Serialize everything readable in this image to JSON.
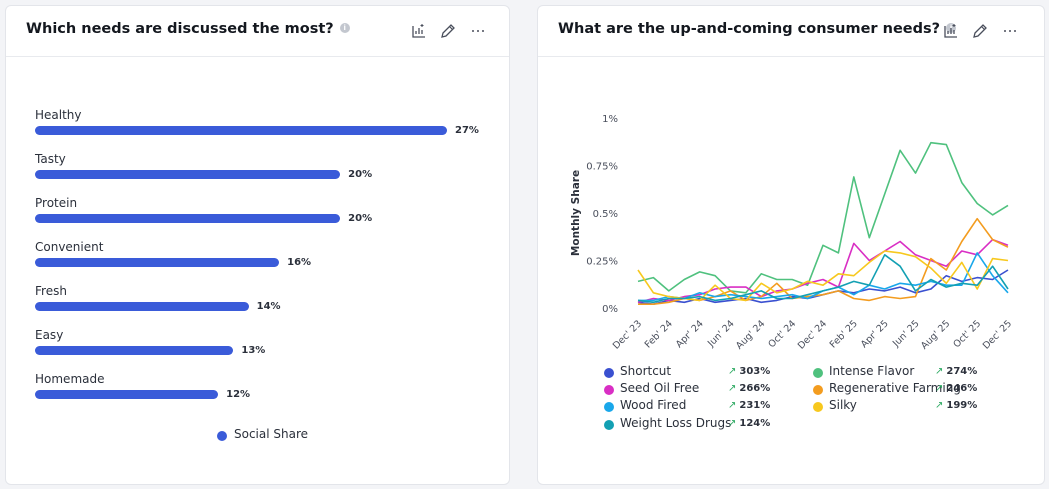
{
  "left_card": {
    "title": "Which needs are discussed the most?",
    "legend_label": "Social Share",
    "legend_color": "#3a5bd9"
  },
  "right_card": {
    "title": "What are the up-and-coming consumer needs?"
  },
  "icons": [
    "info-icon",
    "chart-settings-icon",
    "edit-icon",
    "more-icon",
    "trend-up-icon"
  ],
  "chart_data": [
    {
      "type": "bar",
      "orientation": "horizontal",
      "categories": [
        "Healthy",
        "Tasty",
        "Protein",
        "Convenient",
        "Fresh",
        "Easy",
        "Homemade"
      ],
      "values": [
        27,
        20,
        20,
        16,
        14,
        13,
        12
      ],
      "value_labels": [
        "27%",
        "20%",
        "20%",
        "16%",
        "14%",
        "13%",
        "12%"
      ],
      "series": [
        {
          "name": "Social Share",
          "color": "#3a5bd9"
        }
      ],
      "legend_position": "bottom"
    },
    {
      "type": "line",
      "ylabel": "Monthly Share",
      "ylim": [
        0,
        1
      ],
      "y_ticks": [
        "0%",
        "0.25%",
        "0.5%",
        "0.75%",
        "1%"
      ],
      "y_tick_values": [
        0,
        0.25,
        0.5,
        0.75,
        1
      ],
      "x": [
        "Dec 23",
        "Jan 24",
        "Feb 24",
        "Mar 24",
        "Apr 24",
        "May 24",
        "Jun 24",
        "Jul 24",
        "Aug 24",
        "Sep 24",
        "Oct 24",
        "Nov 24",
        "Dec 24",
        "Jan 25",
        "Feb 25",
        "Mar 25",
        "Apr 25",
        "May 25",
        "Jun 25",
        "Jul 25",
        "Aug 25",
        "Sep 25",
        "Oct 25",
        "Nov 25",
        "Dec 25"
      ],
      "x_tick_labels": [
        "Dec' 23",
        "Feb' 24",
        "Apr' 24",
        "Jun' 24",
        "Aug' 24",
        "Oct' 24",
        "Dec' 24",
        "Feb' 25",
        "Apr' 25",
        "Jun' 25",
        "Aug' 25",
        "Oct' 25",
        "Dec' 25"
      ],
      "legend_position": "bottom",
      "grid": false,
      "series": [
        {
          "name": "Shortcut",
          "color": "#3a50d0",
          "change": "303%",
          "values": [
            0.03,
            0.02,
            0.04,
            0.03,
            0.05,
            0.03,
            0.04,
            0.05,
            0.03,
            0.04,
            0.06,
            0.05,
            0.07,
            0.09,
            0.08,
            0.1,
            0.09,
            0.11,
            0.08,
            0.1,
            0.17,
            0.14,
            0.16,
            0.15,
            0.2
          ]
        },
        {
          "name": "Intense Flavor",
          "color": "#4fc17e",
          "change": "274%",
          "values": [
            0.14,
            0.16,
            0.09,
            0.15,
            0.19,
            0.17,
            0.09,
            0.08,
            0.18,
            0.15,
            0.15,
            0.12,
            0.33,
            0.29,
            0.69,
            0.37,
            0.6,
            0.83,
            0.71,
            0.87,
            0.86,
            0.66,
            0.55,
            0.49,
            0.54
          ]
        },
        {
          "name": "Seed Oil Free",
          "color": "#d92ec4",
          "change": "266%",
          "values": [
            0.03,
            0.05,
            0.04,
            0.06,
            0.07,
            0.1,
            0.11,
            0.11,
            0.06,
            0.09,
            0.1,
            0.13,
            0.15,
            0.11,
            0.34,
            0.25,
            0.3,
            0.35,
            0.28,
            0.25,
            0.22,
            0.3,
            0.28,
            0.36,
            0.33
          ]
        },
        {
          "name": "Regenerative Farming",
          "color": "#f39c1f",
          "change": "246%",
          "values": [
            0.02,
            0.02,
            0.03,
            0.05,
            0.04,
            0.06,
            0.09,
            0.04,
            0.06,
            0.13,
            0.05,
            0.06,
            0.07,
            0.09,
            0.05,
            0.04,
            0.06,
            0.05,
            0.06,
            0.26,
            0.2,
            0.35,
            0.47,
            0.36,
            0.32
          ]
        },
        {
          "name": "Wood Fired",
          "color": "#19a7ea",
          "change": "231%",
          "values": [
            0.04,
            0.04,
            0.06,
            0.05,
            0.08,
            0.06,
            0.07,
            0.06,
            0.05,
            0.06,
            0.07,
            0.05,
            0.09,
            0.11,
            0.07,
            0.12,
            0.1,
            0.13,
            0.12,
            0.14,
            0.12,
            0.12,
            0.29,
            0.17,
            0.08
          ]
        },
        {
          "name": "Silky",
          "color": "#f7c81e",
          "change": "199%",
          "values": [
            0.2,
            0.08,
            0.06,
            0.05,
            0.04,
            0.12,
            0.05,
            0.04,
            0.13,
            0.08,
            0.1,
            0.14,
            0.12,
            0.18,
            0.17,
            0.24,
            0.3,
            0.29,
            0.27,
            0.21,
            0.13,
            0.24,
            0.1,
            0.26,
            0.25
          ]
        },
        {
          "name": "Weight Loss Drugs",
          "color": "#13a0b3",
          "change": "124%",
          "values": [
            0.04,
            0.03,
            0.05,
            0.05,
            0.06,
            0.04,
            0.05,
            0.07,
            0.09,
            0.05,
            0.05,
            0.07,
            0.09,
            0.11,
            0.14,
            0.12,
            0.28,
            0.22,
            0.09,
            0.15,
            0.11,
            0.13,
            0.12,
            0.22,
            0.1
          ]
        }
      ]
    }
  ]
}
